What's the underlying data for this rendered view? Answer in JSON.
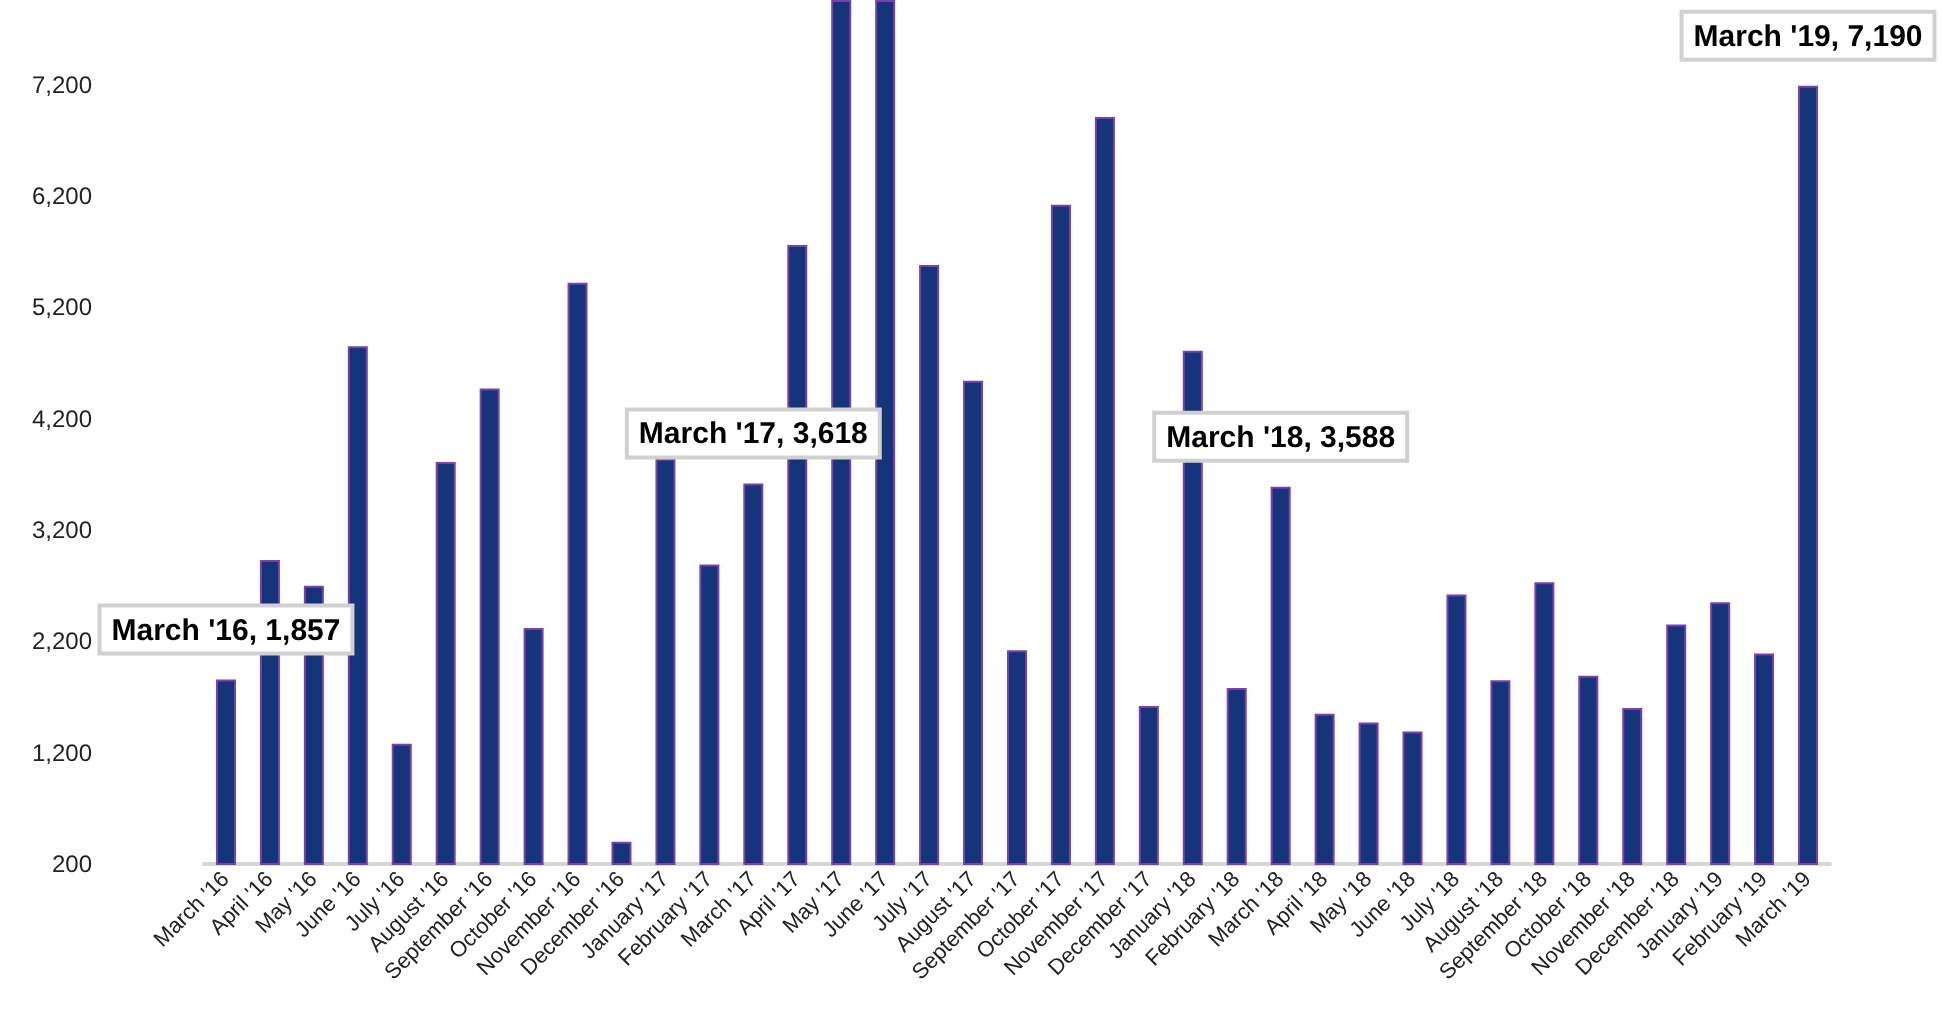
{
  "chart_data": {
    "type": "bar",
    "categories": [
      "March '16",
      "April '16",
      "May '16",
      "June '16",
      "July '16",
      "August '16",
      "September '16",
      "October '16",
      "November '16",
      "December '16",
      "January '17",
      "February '17",
      "March '17",
      "April '17",
      "May '17",
      "June '17",
      "July '17",
      "August '17",
      "September '17",
      "October '17",
      "November '17",
      "December '17",
      "January '18",
      "February '18",
      "March '18",
      "April '18",
      "May '18",
      "June '18",
      "July '18",
      "August '18",
      "September '18",
      "October '18",
      "November '18",
      "December '18",
      "January '19",
      "February '19",
      "March '19"
    ],
    "values": [
      1857,
      2930,
      2700,
      4850,
      1280,
      3810,
      4470,
      2320,
      5420,
      400,
      3840,
      2890,
      3618,
      5760,
      7960,
      7960,
      5580,
      4540,
      2120,
      6120,
      6910,
      1620,
      4810,
      1780,
      3588,
      1550,
      1470,
      1390,
      2620,
      1850,
      2730,
      1890,
      1600,
      2350,
      2550,
      2090,
      7190
    ],
    "value_labels": [
      "March '16, 1,857",
      null,
      null,
      null,
      null,
      null,
      null,
      null,
      null,
      null,
      null,
      null,
      "March '17, 3,618",
      null,
      null,
      null,
      null,
      null,
      null,
      null,
      null,
      null,
      null,
      null,
      "March '18, 3,588",
      null,
      null,
      null,
      null,
      null,
      null,
      null,
      null,
      null,
      null,
      null,
      "March '19, 7,190"
    ],
    "color": "#15347a",
    "ylim": [
      200,
      7960
    ],
    "yticks": [
      200,
      {
        "value": 1200,
        "label": "1,200"
      },
      {
        "value": 2200,
        "label": "2,200"
      },
      {
        "value": 3200,
        "label": "3,200"
      },
      {
        "value": 4200,
        "label": "4,200"
      },
      {
        "value": 5200,
        "label": "5,200"
      },
      {
        "value": 6200,
        "label": "6,200"
      },
      {
        "value": 7200,
        "label": "7,200"
      }
    ],
    "grid": false
  }
}
